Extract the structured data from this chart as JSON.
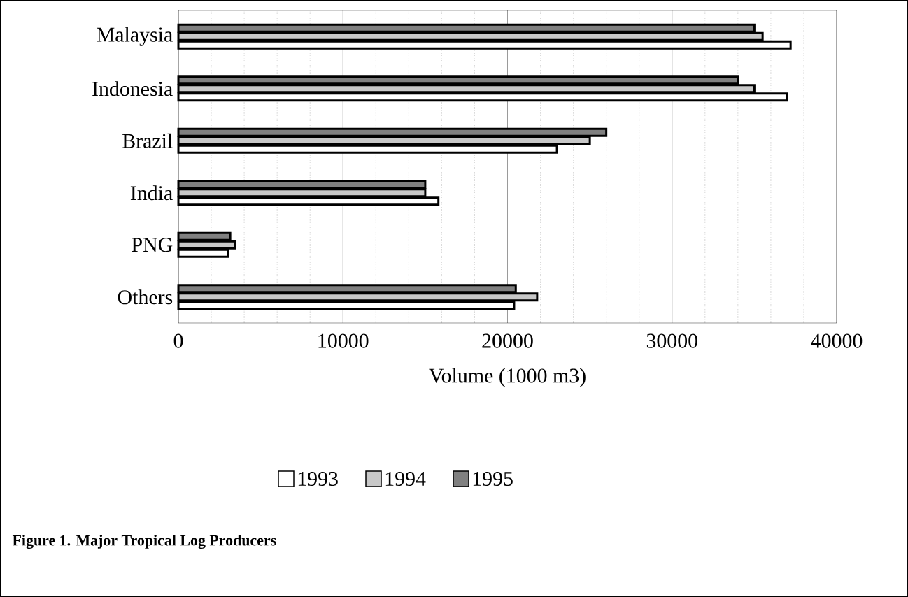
{
  "chart_data": {
    "type": "bar",
    "orientation": "horizontal",
    "title": "Figure 1.  Major Tropical Log Producers",
    "xlabel": "Volume (1000 m3)",
    "categories": [
      "Malaysia",
      "Indonesia",
      "Brazil",
      "India",
      "PNG",
      "Others"
    ],
    "series": [
      {
        "name": "1993",
        "color": "#ffffff",
        "values": [
          37200,
          37000,
          23000,
          15800,
          3000,
          20400
        ]
      },
      {
        "name": "1994",
        "color": "#c8c8c8",
        "values": [
          35500,
          35000,
          25000,
          15000,
          3450,
          21800
        ]
      },
      {
        "name": "1995",
        "color": "#808080",
        "values": [
          35000,
          34000,
          26000,
          15000,
          3150,
          20500
        ]
      }
    ],
    "xlim": [
      0,
      40000
    ],
    "xticks": [
      0,
      10000,
      20000,
      30000,
      40000
    ],
    "grid": "x",
    "legend": "bottom"
  }
}
